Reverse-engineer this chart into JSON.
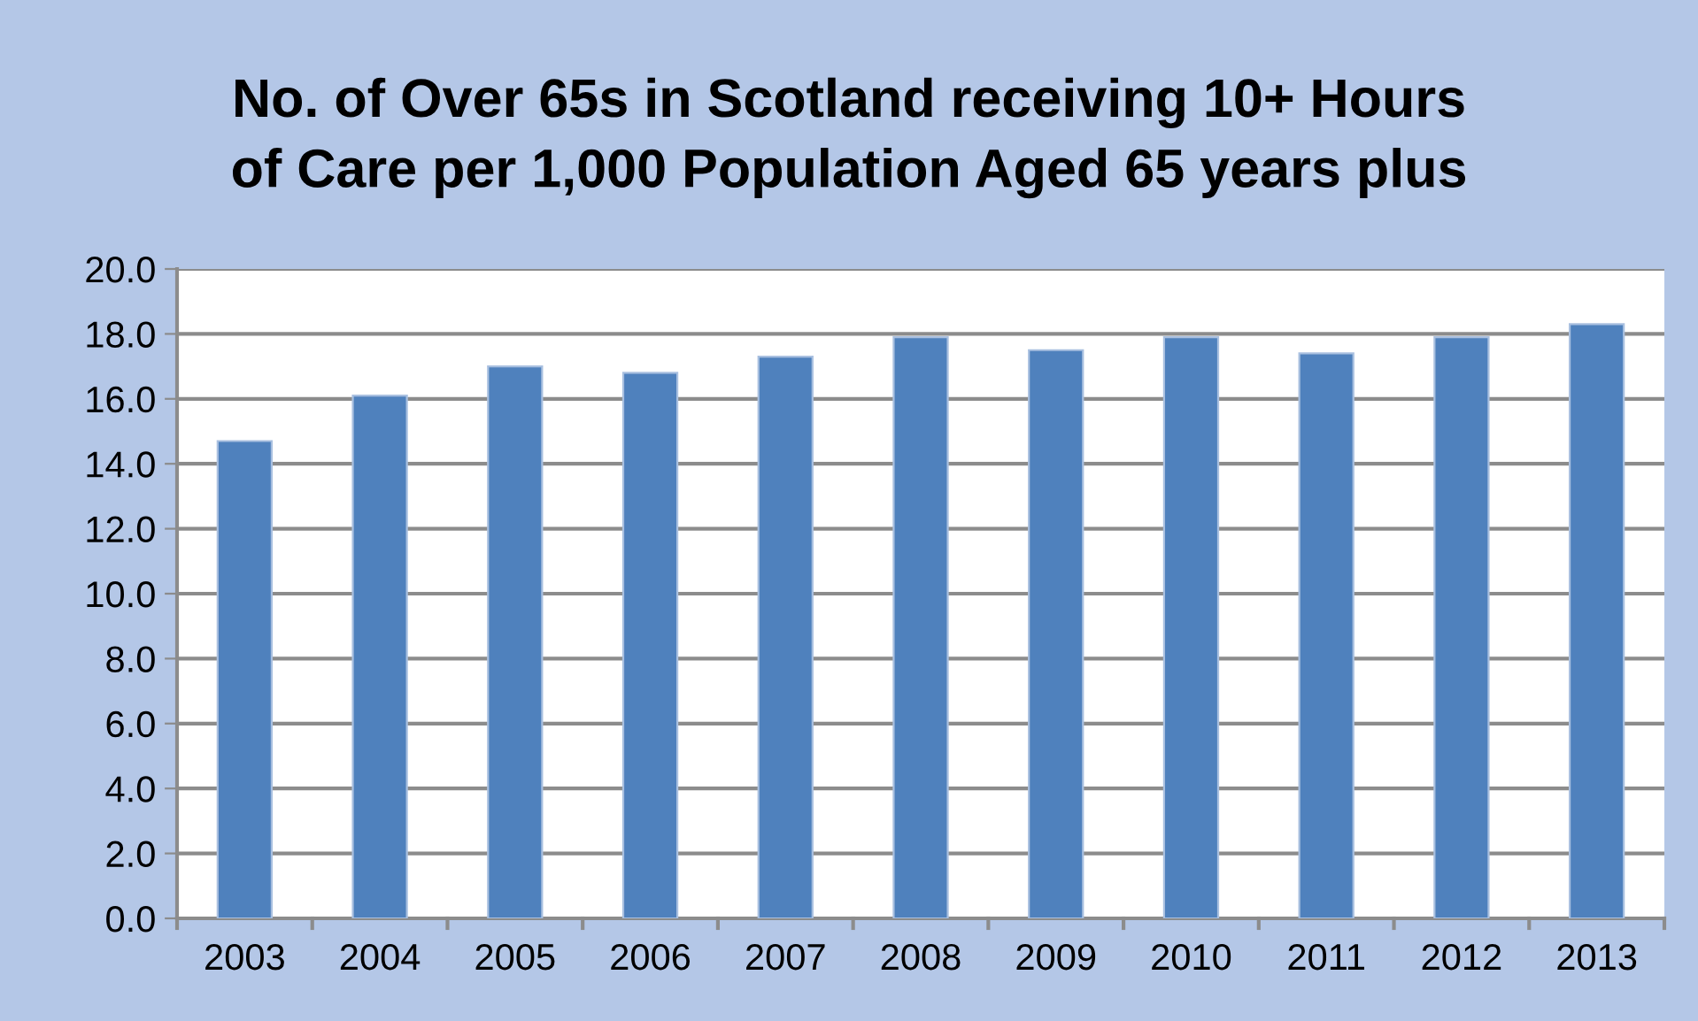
{
  "chart_data": {
    "type": "bar",
    "title": "No. of Over 65s in Scotland receiving 10+ Hours\nof Care per 1,000 Population Aged 65 years plus",
    "categories": [
      "2003",
      "2004",
      "2005",
      "2006",
      "2007",
      "2008",
      "2009",
      "2010",
      "2011",
      "2012",
      "2013"
    ],
    "values": [
      14.7,
      16.1,
      17.0,
      16.8,
      17.3,
      17.9,
      17.5,
      17.9,
      17.4,
      17.9,
      18.3
    ],
    "color": "#4f81bd",
    "ylim": [
      0,
      20
    ],
    "yticks": [
      {
        "value": 0,
        "label": "0.0"
      },
      {
        "value": 2,
        "label": "2.0"
      },
      {
        "value": 4,
        "label": "4.0"
      },
      {
        "value": 6,
        "label": "6.0"
      },
      {
        "value": 8,
        "label": "8.0"
      },
      {
        "value": 10,
        "label": "10.0"
      },
      {
        "value": 12,
        "label": "12.0"
      },
      {
        "value": 14,
        "label": "14.0"
      },
      {
        "value": 16,
        "label": "16.0"
      },
      {
        "value": 18,
        "label": "18.0"
      },
      {
        "value": 20,
        "label": "20.0"
      }
    ],
    "grid": "y"
  }
}
